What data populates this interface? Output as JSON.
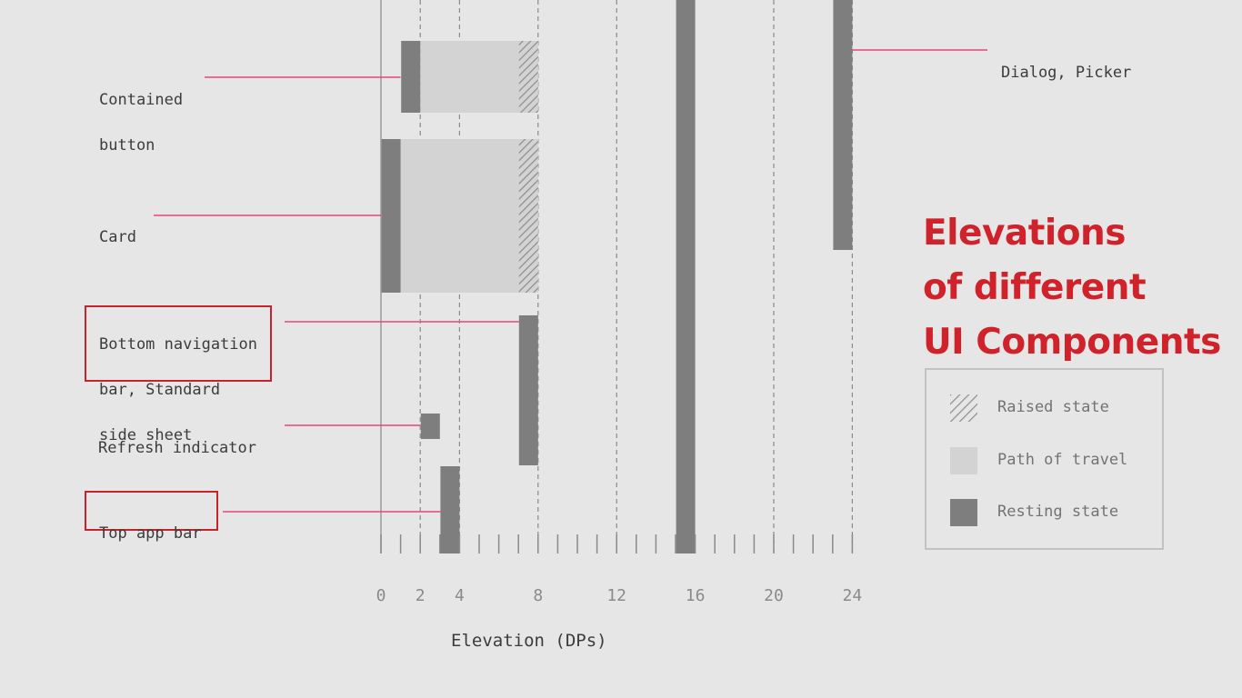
{
  "chart_data": {
    "type": "bar",
    "title": "Elevations of different UI Components",
    "title_lines": [
      "Elevations",
      "of different",
      "UI Components"
    ],
    "xlabel": "Elevation (DPs)",
    "xlim": [
      0,
      24
    ],
    "x_tick_labels": [
      "0",
      "2",
      "4",
      "8",
      "12",
      "16",
      "20",
      "24"
    ],
    "minor_tick_step": 1,
    "dashed_gridlines": [
      2,
      4,
      8,
      12,
      20,
      24
    ],
    "grid": true,
    "legend_position": "right",
    "series_roles": [
      "Raised state",
      "Path of travel",
      "Resting state"
    ],
    "components": [
      {
        "name": "Contained button",
        "lines": [
          "Contained",
          "button"
        ],
        "resting": 2,
        "path_of_travel": [
          2,
          8
        ],
        "raised": 8,
        "highlighted": false
      },
      {
        "name": "Card",
        "lines": [
          "Card"
        ],
        "resting": 1,
        "path_of_travel": [
          1,
          8
        ],
        "raised": 8,
        "highlighted": false
      },
      {
        "name": "Bottom navigation bar, Standard side sheet",
        "lines": [
          "Bottom navigation",
          "bar, Standard",
          "side sheet"
        ],
        "resting": 8,
        "highlighted": true
      },
      {
        "name": "Refresh indicator",
        "lines": [
          "Refresh indicator"
        ],
        "resting": 3,
        "highlighted": false
      },
      {
        "name": "Top app bar",
        "lines": [
          "Top app bar"
        ],
        "resting": 4,
        "highlighted": true
      },
      {
        "name": "Dialog, Picker",
        "lines": [
          "Dialog, Picker"
        ],
        "resting": 24,
        "highlighted": false
      },
      {
        "name": "",
        "lines": [],
        "resting": 16,
        "highlighted": false
      }
    ]
  },
  "legend": {
    "items": [
      {
        "label": "Raised state",
        "icon": "hatch-swatch"
      },
      {
        "label": "Path of travel",
        "icon": "light-swatch"
      },
      {
        "label": "Resting state",
        "icon": "dark-swatch"
      }
    ]
  },
  "colors": {
    "background": "#e6e6e6",
    "resting": "#7e7e7e",
    "path_of_travel": "#d3d3d3",
    "raised_hatch": "#8c8c8c",
    "leader_line": "#e8457a",
    "highlight_box": "#c8232c",
    "heading": "#d0222b",
    "axis_text": "#8a8a8a"
  }
}
